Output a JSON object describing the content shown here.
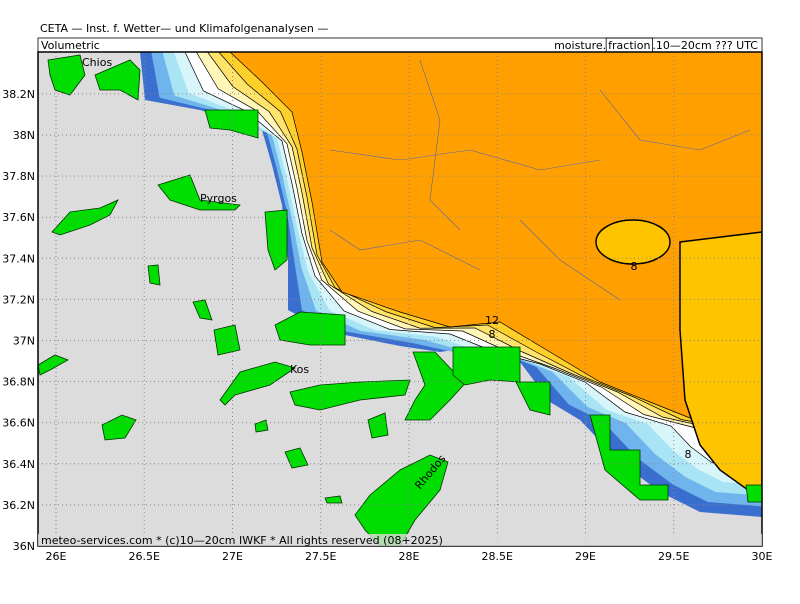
{
  "header": {
    "title": "CETA — Inst. f. Wetter— und Klimafolgenanalysen —",
    "left": "Volumetric",
    "right_prefix": "moisture.",
    "right_boxed": "fraction",
    "right_suffix": ".10—20cm ??? UTC"
  },
  "footer": "meteo-services.com * (c)10—20cm IWKF * All rights reserved (08+2025)",
  "lat_labels": [
    "38.2N",
    "38N",
    "37.8N",
    "37.6N",
    "37.4N",
    "37.2N",
    "37N",
    "36.8N",
    "36.6N",
    "36.4N",
    "36.2N",
    "36N"
  ],
  "lon_labels": [
    "26E",
    "26.5E",
    "27E",
    "27.5E",
    "28E",
    "28.5E",
    "29E",
    "29.5E",
    "30E"
  ],
  "places": [
    "Chios",
    "Pyrgos",
    "Kos",
    "Rhodos"
  ],
  "contour_labels": [
    "8",
    "12",
    "8",
    "8"
  ]
}
